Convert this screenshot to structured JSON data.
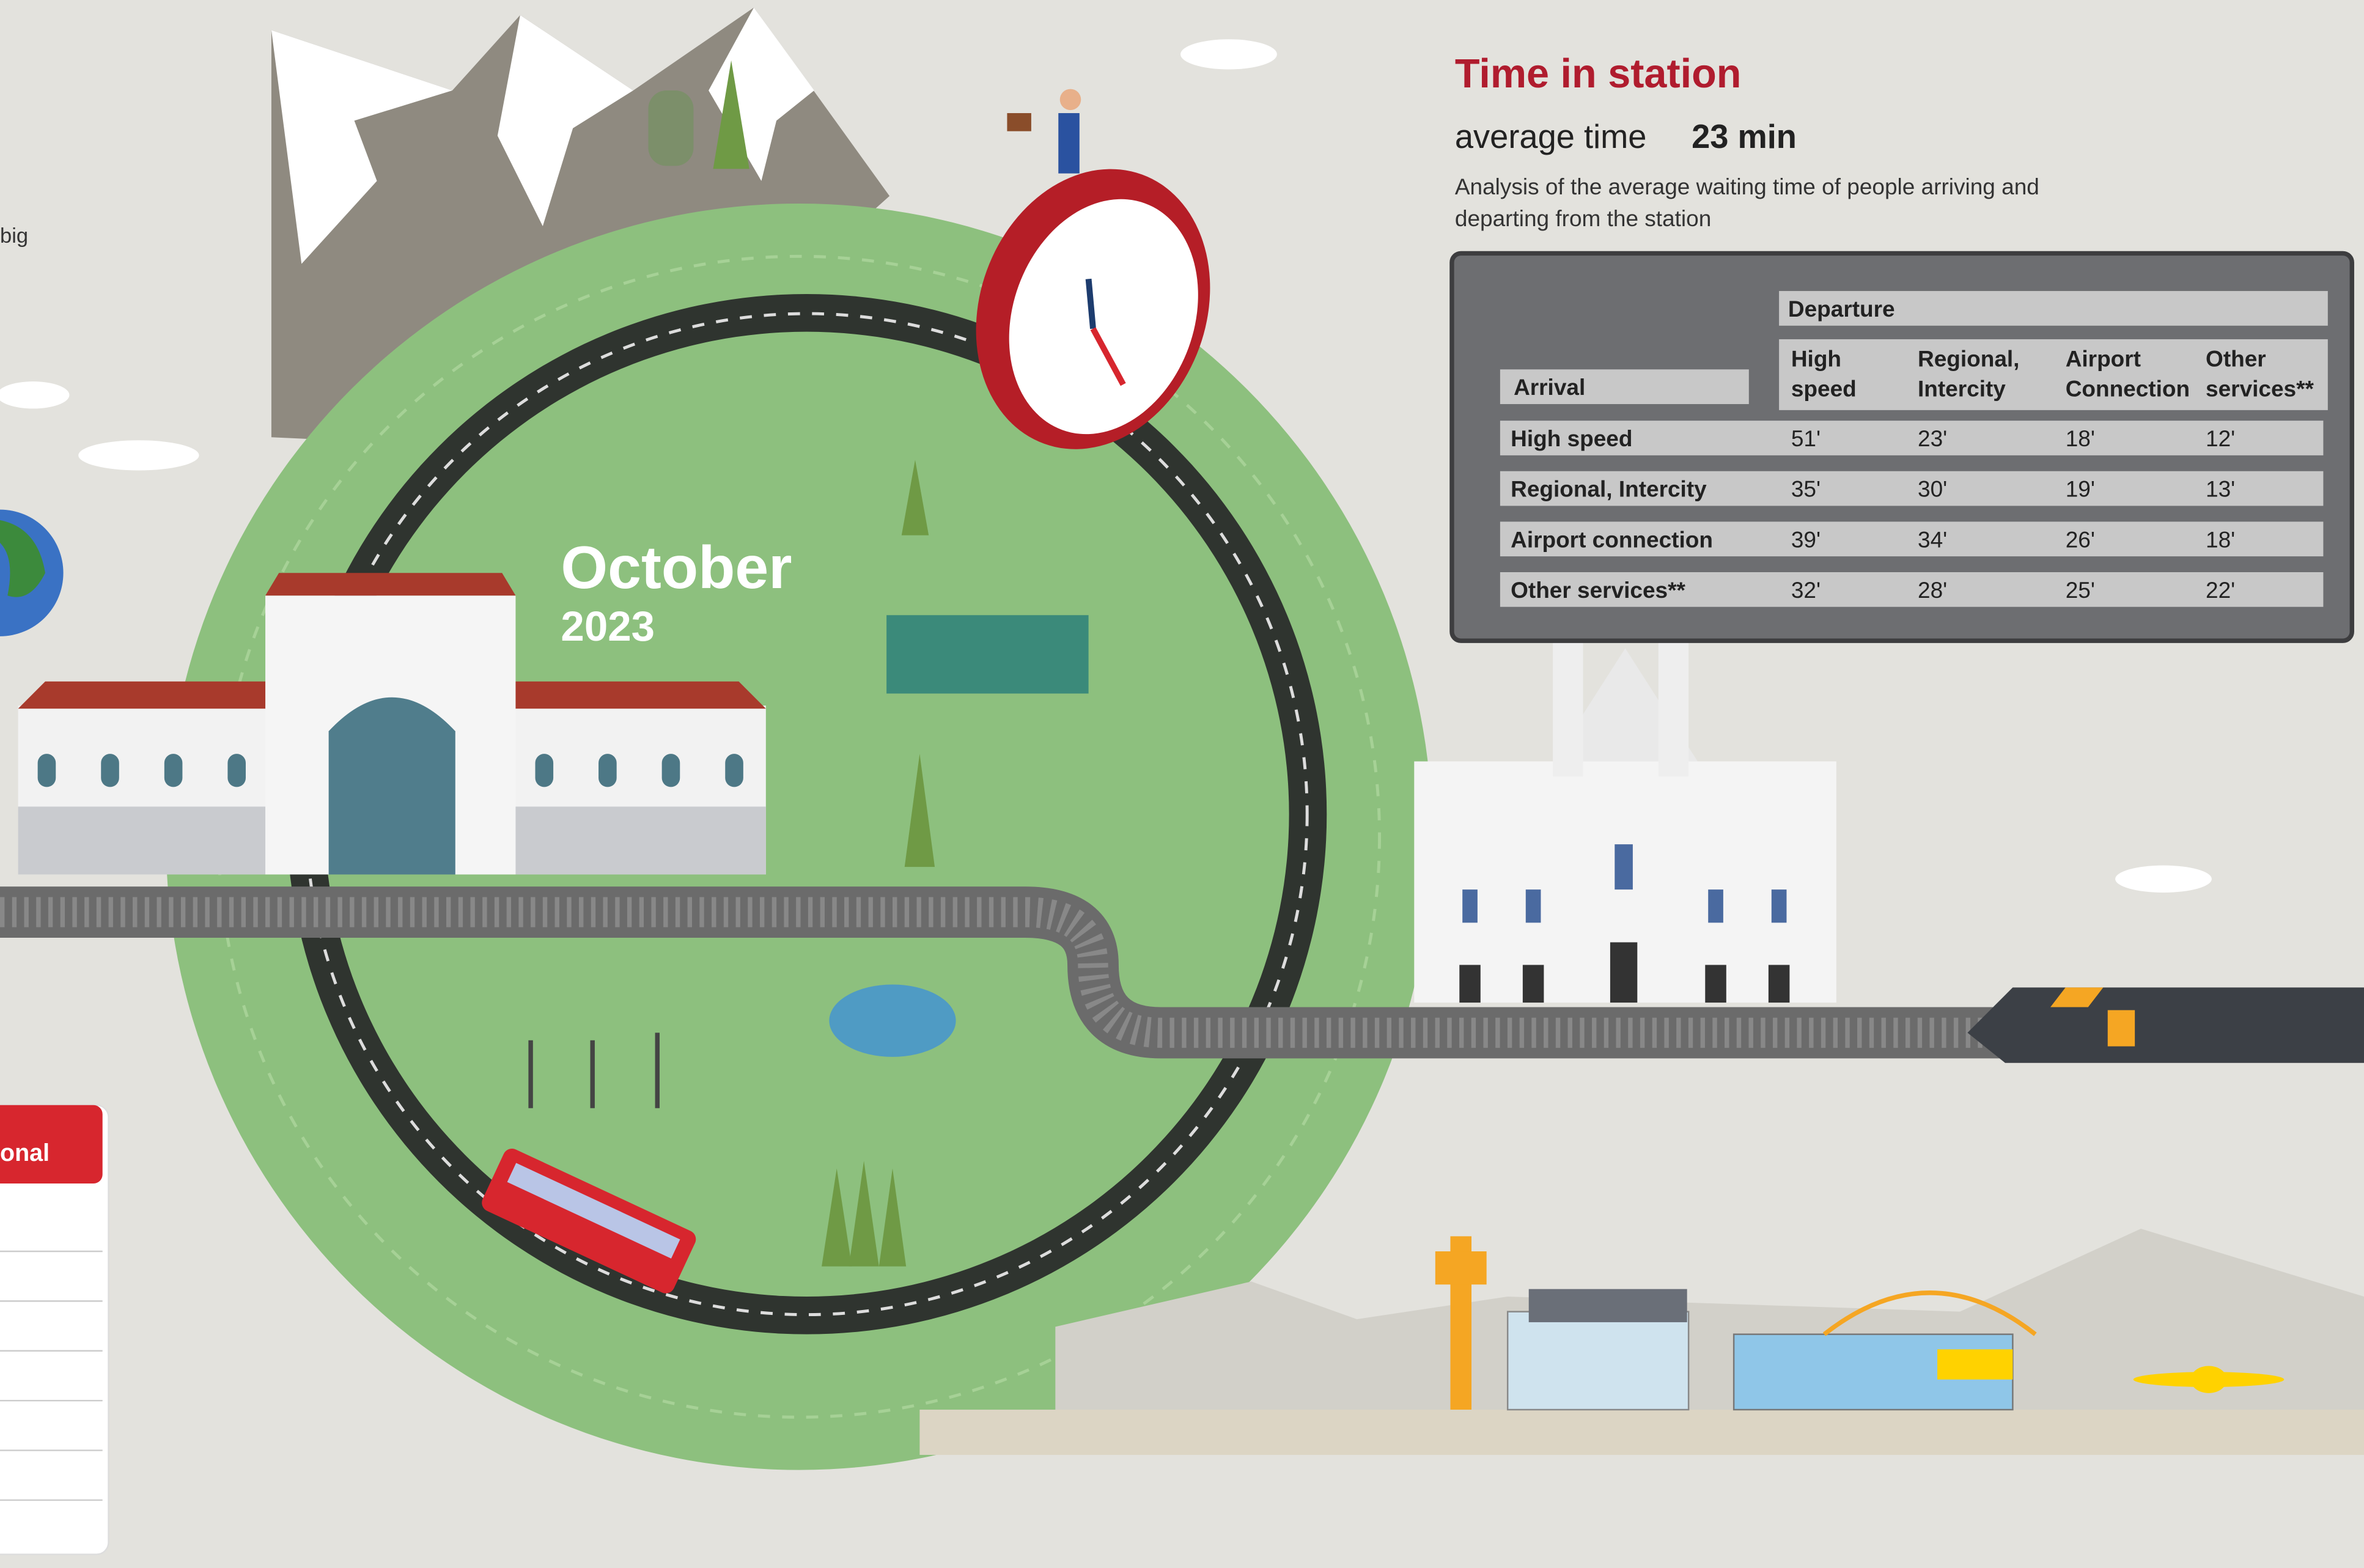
{
  "side_texts": {
    "partial_top": "big",
    "calendar_label": "onal"
  },
  "hero": {
    "month": "October",
    "year": "2023"
  },
  "panel": {
    "title": "Time in station",
    "average_label": "average time",
    "average_value": "23 min",
    "description_lines": [
      "Analysis of the average waiting time of people arriving and",
      "departing from the station"
    ]
  },
  "table": {
    "group_header": "Departure",
    "row_header": "Arrival",
    "columns": [
      [
        "High",
        "speed"
      ],
      [
        "Regional,",
        "Intercity"
      ],
      [
        "Airport",
        "Connection"
      ],
      [
        "Other",
        "services**"
      ]
    ],
    "rows": [
      {
        "label": "High speed",
        "cells": [
          "51'",
          "23'",
          "18'",
          "12'"
        ]
      },
      {
        "label": "Regional, Intercity",
        "cells": [
          "35'",
          "30'",
          "19'",
          "13'"
        ]
      },
      {
        "label": "Airport connection",
        "cells": [
          "39'",
          "34'",
          "26'",
          "18'"
        ]
      },
      {
        "label": "Other services**",
        "cells": [
          "32'",
          "28'",
          "25'",
          "22'"
        ]
      }
    ]
  }
}
